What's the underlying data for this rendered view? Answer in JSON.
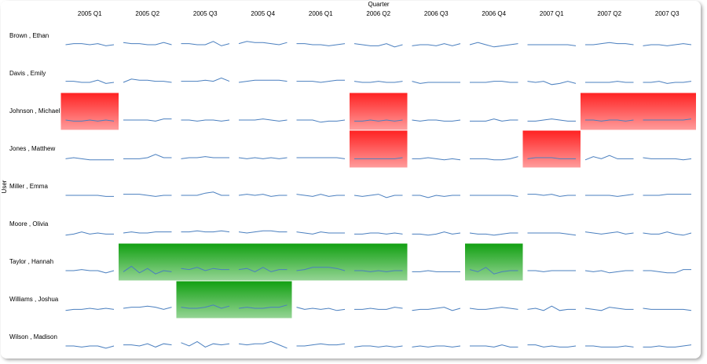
{
  "chart_data": {
    "type": "sparkline-grid",
    "x_label": "Quarter",
    "y_label": "User",
    "categories": [
      "2005 Q1",
      "2005 Q2",
      "2005 Q3",
      "2005 Q4",
      "2006 Q1",
      "2006 Q2",
      "2006 Q3",
      "2006 Q4",
      "2007 Q1",
      "2007 Q2",
      "2007 Q3"
    ],
    "ylim": [
      0,
      10
    ],
    "line_color": "#4a7fbf",
    "series": [
      {
        "name": "Brown , Ethan",
        "cell_colors": [
          null,
          null,
          null,
          null,
          null,
          null,
          null,
          null,
          null,
          null,
          null
        ],
        "values": [
          [
            5,
            6,
            6,
            5,
            6,
            4,
            5
          ],
          [
            7,
            6,
            6,
            5,
            5,
            7,
            5
          ],
          [
            6,
            6,
            5,
            5,
            8,
            4,
            6
          ],
          [
            6,
            8,
            7,
            7,
            6,
            5,
            7
          ],
          [
            6,
            6,
            5,
            5,
            4,
            5,
            6
          ],
          [
            6,
            5,
            4,
            4,
            6,
            3,
            5
          ],
          [
            4,
            5,
            5,
            4,
            6,
            4,
            6
          ],
          [
            5,
            7,
            5,
            3,
            4,
            5,
            6
          ],
          [
            5,
            5,
            5,
            5,
            5,
            5,
            4
          ],
          [
            5,
            5,
            6,
            7,
            6,
            6,
            5
          ],
          [
            4,
            5,
            5,
            4,
            5,
            6,
            5
          ]
        ]
      },
      {
        "name": "Davis , Emily",
        "cell_colors": [
          null,
          null,
          null,
          null,
          null,
          null,
          null,
          null,
          null,
          null,
          null
        ],
        "values": [
          [
            6,
            6,
            5,
            5,
            7,
            4,
            5
          ],
          [
            5,
            8,
            7,
            7,
            6,
            6,
            5
          ],
          [
            6,
            6,
            6,
            7,
            6,
            9,
            6
          ],
          [
            5,
            6,
            7,
            7,
            7,
            7,
            6
          ],
          [
            6,
            6,
            6,
            5,
            6,
            7,
            7
          ],
          [
            6,
            5,
            5,
            6,
            5,
            5,
            6
          ],
          [
            6,
            4,
            5,
            5,
            5,
            5,
            5
          ],
          [
            5,
            5,
            5,
            6,
            6,
            5,
            5
          ],
          [
            6,
            5,
            6,
            3,
            4,
            6,
            4
          ],
          [
            5,
            5,
            5,
            5,
            6,
            5,
            5
          ],
          [
            5,
            5,
            6,
            4,
            5,
            5,
            6
          ]
        ]
      },
      {
        "name": "Johnson , Michael",
        "cell_colors": [
          "#ff2222",
          null,
          null,
          null,
          null,
          "#ff2222",
          null,
          null,
          null,
          "#ff2222",
          "#ff2222"
        ],
        "values": [
          [
            5,
            4,
            4,
            5,
            4,
            5,
            4
          ],
          [
            5,
            5,
            5,
            5,
            4,
            6,
            6
          ],
          [
            5,
            5,
            4,
            5,
            5,
            4,
            5
          ],
          [
            5,
            5,
            5,
            6,
            5,
            4,
            5
          ],
          [
            5,
            5,
            5,
            3,
            4,
            4,
            5
          ],
          [
            4,
            4,
            5,
            4,
            5,
            4,
            5
          ],
          [
            5,
            4,
            5,
            5,
            4,
            4,
            5
          ],
          [
            4,
            4,
            4,
            6,
            4,
            5,
            5
          ],
          [
            4,
            4,
            5,
            6,
            5,
            4,
            4
          ],
          [
            5,
            5,
            4,
            5,
            5,
            4,
            5
          ],
          [
            5,
            5,
            5,
            5,
            5,
            5,
            6
          ]
        ]
      },
      {
        "name": "Jones , Matthew",
        "cell_colors": [
          null,
          null,
          null,
          null,
          null,
          "#ff2222",
          null,
          null,
          "#ff2222",
          null,
          null
        ],
        "values": [
          [
            4,
            5,
            4,
            3,
            3,
            3,
            3
          ],
          [
            4,
            4,
            4,
            5,
            8,
            5,
            5
          ],
          [
            4,
            5,
            5,
            6,
            5,
            5,
            5
          ],
          [
            5,
            4,
            5,
            4,
            5,
            4,
            5
          ],
          [
            5,
            5,
            5,
            5,
            5,
            5,
            4
          ],
          [
            4,
            4,
            4,
            4,
            4,
            4,
            5
          ],
          [
            4,
            4,
            5,
            4,
            3,
            4,
            3
          ],
          [
            4,
            4,
            4,
            3,
            3,
            4,
            6
          ],
          [
            4,
            5,
            5,
            5,
            4,
            4,
            4
          ],
          [
            3,
            6,
            4,
            7,
            4,
            4,
            4
          ],
          [
            5,
            4,
            4,
            4,
            4,
            3,
            4
          ]
        ]
      },
      {
        "name": "Miller , Emma",
        "cell_colors": [
          null,
          null,
          null,
          null,
          null,
          null,
          null,
          null,
          null,
          null,
          null
        ],
        "values": [
          [
            5,
            5,
            5,
            5,
            5,
            4,
            4
          ],
          [
            6,
            6,
            6,
            5,
            4,
            5,
            5
          ],
          [
            5,
            5,
            5,
            7,
            8,
            5,
            5
          ],
          [
            5,
            6,
            5,
            6,
            4,
            5,
            5
          ],
          [
            6,
            5,
            4,
            6,
            4,
            5,
            5
          ],
          [
            5,
            4,
            5,
            6,
            3,
            5,
            5
          ],
          [
            5,
            5,
            3,
            5,
            4,
            5,
            5
          ],
          [
            5,
            5,
            5,
            5,
            5,
            5,
            4
          ],
          [
            6,
            6,
            5,
            6,
            4,
            5,
            5
          ],
          [
            5,
            5,
            5,
            5,
            4,
            5,
            6
          ],
          [
            5,
            5,
            5,
            6,
            6,
            6,
            6
          ]
        ]
      },
      {
        "name": "Moore , Olivia",
        "cell_colors": [
          null,
          null,
          null,
          null,
          null,
          null,
          null,
          null,
          null,
          null,
          null
        ],
        "values": [
          [
            3,
            4,
            6,
            4,
            5,
            4,
            4
          ],
          [
            5,
            6,
            5,
            5,
            6,
            6,
            6
          ],
          [
            6,
            6,
            7,
            6,
            6,
            7,
            6
          ],
          [
            6,
            5,
            6,
            7,
            7,
            6,
            6
          ],
          [
            6,
            5,
            4,
            6,
            5,
            5,
            5
          ],
          [
            4,
            4,
            5,
            5,
            4,
            5,
            4
          ],
          [
            4,
            4,
            3,
            4,
            6,
            4,
            5
          ],
          [
            5,
            4,
            4,
            3,
            4,
            5,
            5
          ],
          [
            5,
            5,
            5,
            5,
            5,
            4,
            3
          ],
          [
            6,
            5,
            4,
            5,
            6,
            4,
            5
          ],
          [
            5,
            4,
            4,
            6,
            4,
            3,
            5
          ]
        ]
      },
      {
        "name": "Taylor , Hannah",
        "cell_colors": [
          null,
          "#12a012",
          "#12a012",
          "#12a012",
          "#12a012",
          "#12a012",
          null,
          "#12a012",
          null,
          null,
          null
        ],
        "values": [
          [
            5,
            5,
            6,
            5,
            5,
            3,
            5
          ],
          [
            4,
            9,
            3,
            7,
            2,
            5,
            4
          ],
          [
            7,
            6,
            8,
            5,
            7,
            6,
            6
          ],
          [
            6,
            7,
            4,
            8,
            4,
            6,
            6
          ],
          [
            5,
            6,
            8,
            8,
            8,
            7,
            5
          ],
          [
            5,
            5,
            4,
            5,
            4,
            5,
            5
          ],
          [
            4,
            4,
            5,
            4,
            4,
            4,
            4
          ],
          [
            6,
            4,
            8,
            2,
            4,
            5,
            5
          ],
          [
            5,
            5,
            4,
            5,
            5,
            5,
            5
          ],
          [
            5,
            4,
            5,
            3,
            4,
            5,
            5
          ],
          [
            5,
            5,
            4,
            3,
            3,
            6,
            6
          ]
        ]
      },
      {
        "name": "Williams , Joshua",
        "cell_colors": [
          null,
          null,
          "#12a012",
          "#12a012",
          null,
          null,
          null,
          null,
          null,
          null,
          null
        ],
        "values": [
          [
            3,
            4,
            4,
            5,
            4,
            5,
            4
          ],
          [
            5,
            6,
            6,
            7,
            6,
            4,
            6
          ],
          [
            6,
            5,
            5,
            6,
            8,
            5,
            7
          ],
          [
            5,
            6,
            5,
            5,
            6,
            6,
            8
          ],
          [
            6,
            4,
            5,
            4,
            5,
            3,
            4
          ],
          [
            4,
            4,
            5,
            4,
            4,
            6,
            5
          ],
          [
            3,
            4,
            4,
            5,
            6,
            3,
            5
          ],
          [
            5,
            4,
            4,
            5,
            6,
            5,
            4
          ],
          [
            4,
            5,
            3,
            7,
            3,
            4,
            4
          ],
          [
            5,
            4,
            3,
            6,
            5,
            4,
            4
          ],
          [
            5,
            4,
            4,
            4,
            4,
            4,
            3
          ]
        ]
      },
      {
        "name": "Wilson , Madison",
        "cell_colors": [
          null,
          null,
          null,
          null,
          null,
          null,
          null,
          null,
          null,
          null,
          null
        ],
        "values": [
          [
            5,
            5,
            4,
            5,
            5,
            3,
            5
          ],
          [
            6,
            6,
            5,
            7,
            4,
            7,
            6
          ],
          [
            8,
            5,
            9,
            4,
            7,
            6,
            7
          ],
          [
            7,
            6,
            7,
            7,
            9,
            6,
            3
          ],
          [
            5,
            5,
            6,
            7,
            6,
            6,
            7
          ],
          [
            4,
            5,
            5,
            4,
            5,
            4,
            5
          ],
          [
            4,
            5,
            4,
            5,
            5,
            4,
            5
          ],
          [
            5,
            5,
            5,
            4,
            6,
            4,
            4
          ],
          [
            6,
            6,
            4,
            5,
            4,
            4,
            5
          ],
          [
            5,
            5,
            4,
            4,
            4,
            5,
            4
          ],
          [
            4,
            4,
            5,
            4,
            4,
            5,
            6
          ]
        ]
      }
    ]
  }
}
